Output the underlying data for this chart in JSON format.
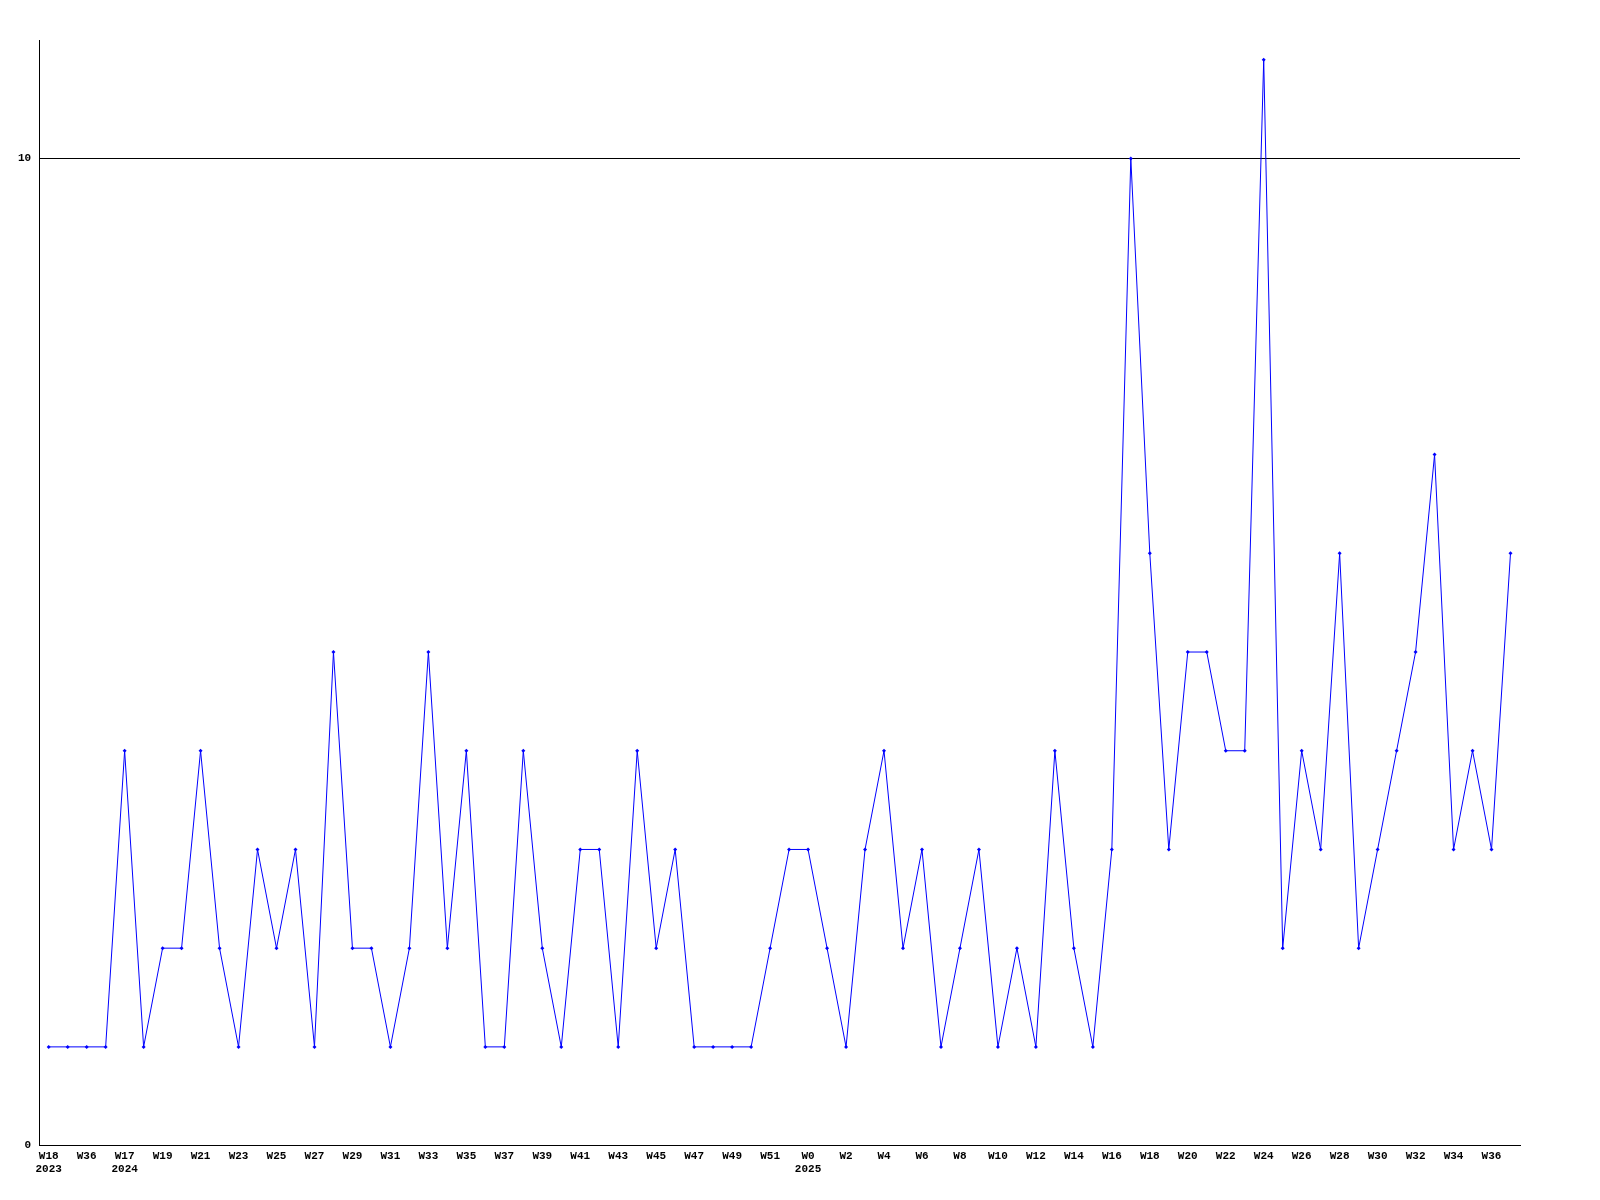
{
  "chart_data": {
    "type": "line",
    "categories": [
      "W18\n2023",
      null,
      "W36",
      null,
      "W17\n2024",
      null,
      "W19",
      null,
      "W21",
      null,
      "W23",
      null,
      "W25",
      null,
      "W27",
      null,
      "W29",
      null,
      "W31",
      null,
      "W33",
      null,
      "W35",
      null,
      "W37",
      null,
      "W39",
      null,
      "W41",
      null,
      "W43",
      null,
      "W45",
      null,
      "W47",
      null,
      "W49",
      null,
      "W51",
      null,
      "W0\n2025",
      null,
      "W2",
      null,
      "W4",
      null,
      "W6",
      null,
      "W8",
      null,
      "W10",
      null,
      "W12",
      null,
      "W14",
      null,
      "W16",
      null,
      "W18",
      null,
      "W20",
      null,
      "W22",
      null,
      "W24",
      null,
      "W26",
      null,
      "W28",
      null,
      "W30",
      null,
      "W32",
      null,
      "W34",
      null,
      "W36",
      null
    ],
    "series": [
      {
        "color": "#0000ff",
        "values": [
          1,
          1,
          1,
          1,
          4,
          1,
          2,
          2,
          4,
          2,
          1,
          3,
          2,
          3,
          1,
          5,
          2,
          2,
          1,
          2,
          5,
          2,
          4,
          1,
          1,
          4,
          2,
          1,
          3,
          3,
          1,
          4,
          2,
          3,
          1,
          1,
          1,
          1,
          2,
          3,
          3,
          2,
          1,
          3,
          4,
          2,
          3,
          1,
          2,
          3,
          1,
          2,
          1,
          4,
          2,
          1,
          3,
          10,
          6,
          3,
          5,
          5,
          4,
          4,
          11,
          2,
          4,
          3,
          6,
          2,
          3,
          4,
          5,
          7,
          3,
          4,
          3,
          6
        ]
      }
    ],
    "ylim": [
      0,
      11.2
    ],
    "yticks": [
      0,
      10
    ],
    "grid": "y",
    "legend": false,
    "marker": "diamond",
    "line_style": "solid"
  }
}
